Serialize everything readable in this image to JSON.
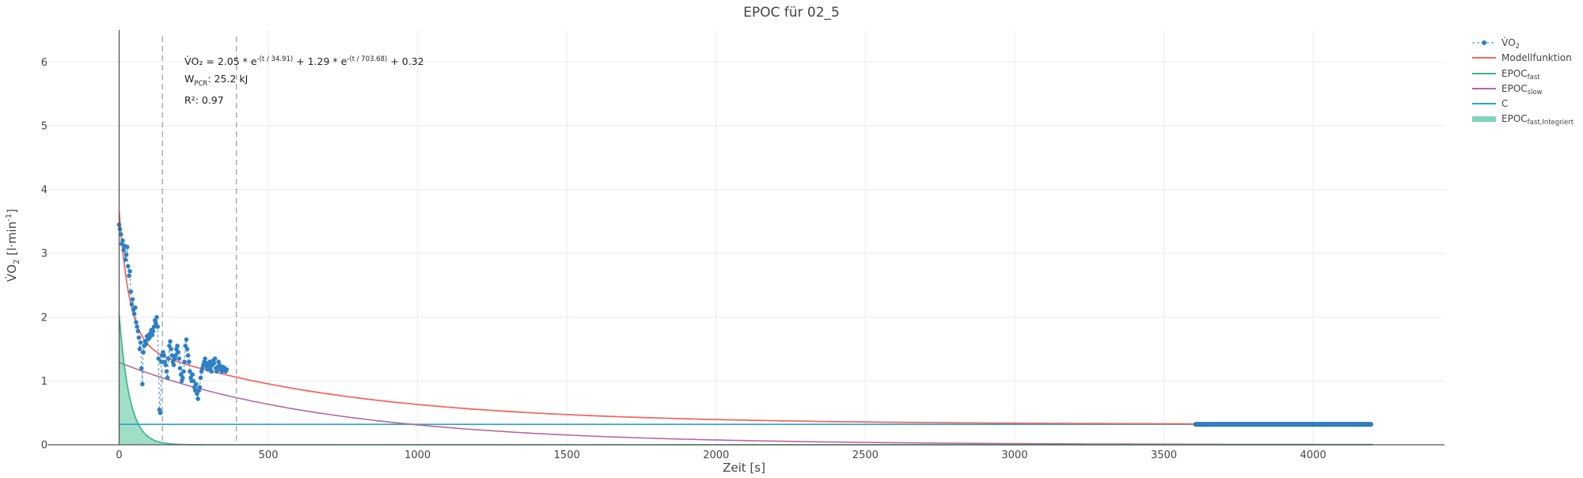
{
  "chart_data": {
    "type": "line",
    "title": "EPOC für 02_5",
    "xlabel": "Zeit [s]",
    "ylabel": {
      "base": "V̇O",
      "sub": "2",
      "suffix": " [l·min",
      "sup": "-1",
      "close": "]"
    },
    "xlim": [
      -240,
      4440
    ],
    "ylim": [
      0,
      6.5
    ],
    "x_ticks": [
      0,
      500,
      1000,
      1500,
      2000,
      2500,
      3000,
      3500,
      4000
    ],
    "y_ticks": [
      0,
      1,
      2,
      3,
      4,
      5,
      6
    ],
    "grid": true,
    "legend_position": "top-right",
    "vlines": [
      145,
      393
    ],
    "model": {
      "a_fast": 2.05,
      "tau_fast": 34.91,
      "a_slow": 1.29,
      "tau_slow": 703.68,
      "c": 0.32,
      "t_end": 4200
    },
    "series": [
      {
        "name": "V̇O2",
        "name_base": "V̇O",
        "name_sub": "2",
        "color": "#2e80c6",
        "style": "dashed markers",
        "points": [
          [
            0,
            3.45
          ],
          [
            3,
            3.38
          ],
          [
            6,
            3.3
          ],
          [
            9,
            3.15
          ],
          [
            12,
            3.2
          ],
          [
            15,
            3.05
          ],
          [
            18,
            3.12
          ],
          [
            21,
            2.9
          ],
          [
            24,
            2.98
          ],
          [
            27,
            3.1
          ],
          [
            30,
            2.8
          ],
          [
            33,
            2.65
          ],
          [
            36,
            2.72
          ],
          [
            39,
            2.4
          ],
          [
            42,
            2.2
          ],
          [
            45,
            2.28
          ],
          [
            48,
            2.12
          ],
          [
            51,
            2.05
          ],
          [
            54,
            2.15
          ],
          [
            57,
            1.92
          ],
          [
            60,
            1.85
          ],
          [
            63,
            1.78
          ],
          [
            66,
            1.68
          ],
          [
            69,
            1.5
          ],
          [
            72,
            1.6
          ],
          [
            75,
            1.2
          ],
          [
            78,
            0.95
          ],
          [
            81,
            1.45
          ],
          [
            84,
            1.55
          ],
          [
            87,
            1.62
          ],
          [
            90,
            1.58
          ],
          [
            93,
            1.7
          ],
          [
            96,
            1.65
          ],
          [
            99,
            1.72
          ],
          [
            102,
            1.68
          ],
          [
            105,
            1.75
          ],
          [
            108,
            1.8
          ],
          [
            111,
            1.72
          ],
          [
            114,
            1.78
          ],
          [
            117,
            1.85
          ],
          [
            120,
            1.95
          ],
          [
            123,
            1.9
          ],
          [
            126,
            2.0
          ],
          [
            129,
            1.85
          ],
          [
            132,
            1.35
          ],
          [
            135,
            0.55
          ],
          [
            138,
            0.5
          ],
          [
            141,
            1.3
          ],
          [
            144,
            1.4
          ],
          [
            147,
            1.45
          ],
          [
            150,
            1.4
          ],
          [
            153,
            1.3
          ],
          [
            156,
            1.25
          ],
          [
            159,
            1.15
          ],
          [
            162,
            1.05
          ],
          [
            165,
            1.35
          ],
          [
            168,
            1.55
          ],
          [
            171,
            1.62
          ],
          [
            174,
            1.5
          ],
          [
            177,
            1.4
          ],
          [
            180,
            1.3
          ],
          [
            183,
            1.25
          ],
          [
            186,
            1.35
          ],
          [
            189,
            1.4
          ],
          [
            192,
            1.5
          ],
          [
            195,
            1.55
          ],
          [
            198,
            1.45
          ],
          [
            201,
            1.35
          ],
          [
            204,
            1.2
          ],
          [
            207,
            1.1
          ],
          [
            210,
            1.0
          ],
          [
            213,
            1.05
          ],
          [
            216,
            1.15
          ],
          [
            219,
            1.3
          ],
          [
            222,
            1.55
          ],
          [
            225,
            1.65
          ],
          [
            228,
            1.5
          ],
          [
            231,
            1.4
          ],
          [
            234,
            1.3
          ],
          [
            237,
            1.15
          ],
          [
            240,
            1.05
          ],
          [
            243,
            1.0
          ],
          [
            246,
            1.1
          ],
          [
            249,
            1.0
          ],
          [
            252,
            0.9
          ],
          [
            255,
            0.85
          ],
          [
            258,
            0.95
          ],
          [
            261,
            0.8
          ],
          [
            264,
            0.72
          ],
          [
            267,
            0.85
          ],
          [
            270,
            0.9
          ],
          [
            273,
            1.05
          ],
          [
            276,
            1.15
          ],
          [
            279,
            1.2
          ],
          [
            282,
            1.25
          ],
          [
            285,
            1.3
          ],
          [
            288,
            1.35
          ],
          [
            291,
            1.28
          ],
          [
            294,
            1.22
          ],
          [
            297,
            1.18
          ],
          [
            300,
            1.25
          ],
          [
            303,
            1.3
          ],
          [
            306,
            1.2
          ],
          [
            309,
            1.15
          ],
          [
            312,
            1.25
          ],
          [
            315,
            1.32
          ],
          [
            318,
            1.28
          ],
          [
            321,
            1.35
          ],
          [
            324,
            1.2
          ],
          [
            327,
            1.15
          ],
          [
            330,
            1.22
          ],
          [
            333,
            1.3
          ],
          [
            336,
            1.25
          ],
          [
            339,
            1.18
          ],
          [
            342,
            1.2
          ],
          [
            345,
            1.15
          ],
          [
            348,
            1.22
          ],
          [
            351,
            1.18
          ],
          [
            354,
            1.2
          ],
          [
            357,
            1.15
          ],
          [
            360,
            1.18
          ]
        ],
        "flat_segment": {
          "x_start": 3600,
          "x_end": 4200,
          "y": 0.32
        }
      },
      {
        "name": "Modellfunktion",
        "color": "#ef6a63",
        "style": "line"
      },
      {
        "name": "EPOCfast",
        "name_base": "EPOC",
        "name_sub": "fast",
        "color": "#36b486",
        "style": "line"
      },
      {
        "name": "EPOCslow",
        "name_base": "EPOC",
        "name_sub": "slow",
        "color": "#b76a98",
        "style": "line"
      },
      {
        "name": "C",
        "color": "#2ba3cc",
        "style": "line"
      },
      {
        "name": "EPOCfast,Integriert",
        "name_base": "EPOC",
        "name_sub": "fast,Integriert",
        "color": "#7fd4b6",
        "style": "area"
      }
    ],
    "annotations": {
      "formula": {
        "prefix": "V̇O₂ = 2.05 * e",
        "exp1": "-(t / 34.91)",
        "mid": " + 1.29 * e",
        "exp2": "-(t / 703.68)",
        "suffix": " + 0.32"
      },
      "work": {
        "base": "W",
        "sub": "PCR",
        "suffix": ": 25.2 kJ"
      },
      "r2": "R²: 0.97"
    }
  }
}
